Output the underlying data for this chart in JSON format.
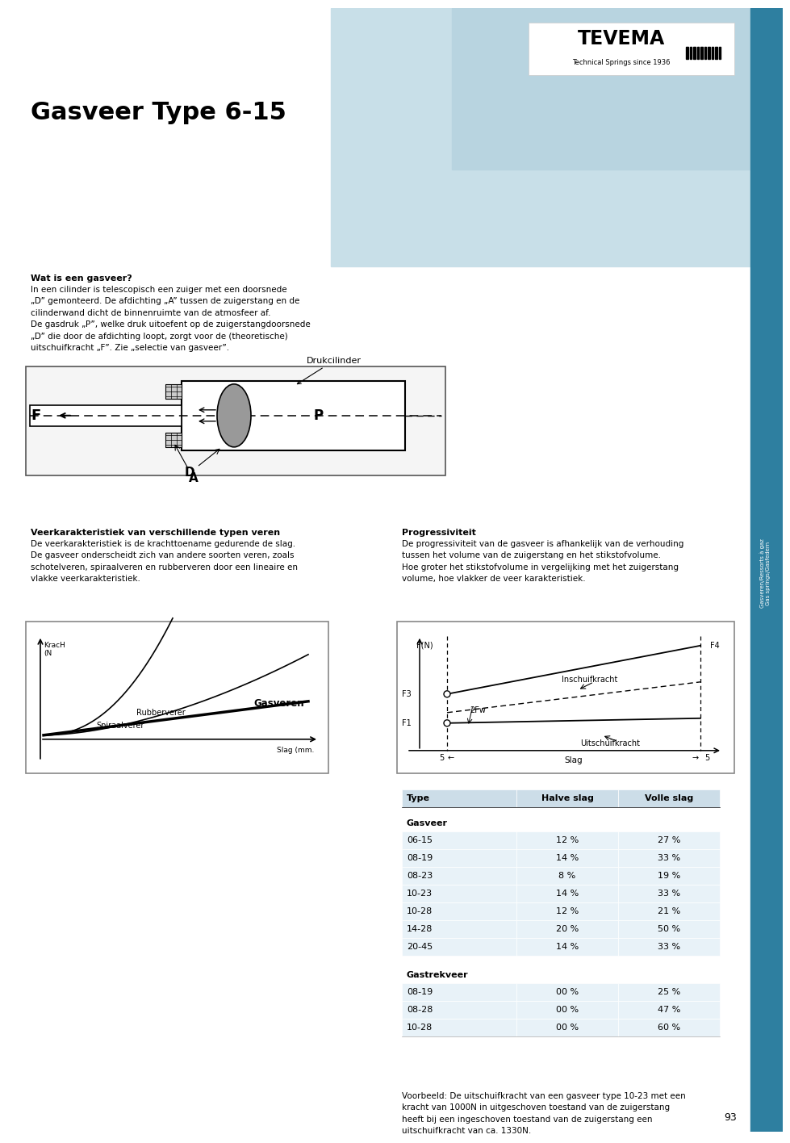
{
  "title": "Gasveer Type 6-15",
  "bg_color": "#ffffff",
  "page_number": "93",
  "sidebar_color": "#2e7fa0",
  "sidebar_text": "Gasveren/Ressorts à gaz\nGas springs/Gasfedern",
  "wat_is_title": "Wat is een gasveer?",
  "wat_is_text": "In een cilinder is telescopisch een zuiger met een doorsnede\n„D” gemonteerd. De afdichting „A” tussen de zuigerstang en de\ncilinderwand dicht de binnenruimte van de atmosfeer af.\nDe gasdruk „P”, welke druk uitoefent op de zuigerstangdoorsnede\n„D” die door de afdichting loopt, zorgt voor de (theoretische)\nuitschuifkracht „F”. Zie „selectie van gasveer”.",
  "veer_title": "Veerkarakteristiek van verschillende typen veren",
  "veer_text": "De veerkarakteristiek is de krachttoename gedurende de slag.\nDe gasveer onderscheidt zich van andere soorten veren, zoals\nschotelveren, spiraalveren en rubberveren door een lineaire en\nvlakke veerkarakteristiek.",
  "prog_title": "Progressiviteit",
  "prog_text": "De progressiviteit van de gasveer is afhankelijk van de verhouding\ntussen het volume van de zuigerstang en het stikstofvolume.\nHoe groter het stikstofvolume in vergelijking met het zuigerstang\nvolume, hoe vlakker de veer karakteristiek.",
  "table_header": [
    "Type",
    "Halve slag",
    "Volle slag"
  ],
  "table_gasveer_label": "Gasveer",
  "table_gasveer": [
    [
      "06-15",
      "12 %",
      "27 %"
    ],
    [
      "08-19",
      "14 %",
      "33 %"
    ],
    [
      "08-23",
      "8 %",
      "19 %"
    ],
    [
      "10-23",
      "14 %",
      "33 %"
    ],
    [
      "10-28",
      "12 %",
      "21 %"
    ],
    [
      "14-28",
      "20 %",
      "50 %"
    ],
    [
      "20-45",
      "14 %",
      "33 %"
    ]
  ],
  "table_gastrekveer_label": "Gastrekveer",
  "table_gastrekveer": [
    [
      "08-19",
      "00 %",
      "25 %"
    ],
    [
      "08-28",
      "00 %",
      "47 %"
    ],
    [
      "10-28",
      "00 %",
      "60 %"
    ]
  ],
  "voorbeeld_text": "Voorbeeld: De uitschuifkracht van een gasveer type 10-23 met een\nkracht van 1000N in uitgeschoven toestand van de zuigerstang\nheeft bij een ingeschoven toestand van de zuigerstang een\nuitschuifkracht van ca. 1330N.",
  "table_header_bg": "#ccdde8",
  "table_row_bg": "#e8f2f8",
  "teal": "#2e7fa0"
}
